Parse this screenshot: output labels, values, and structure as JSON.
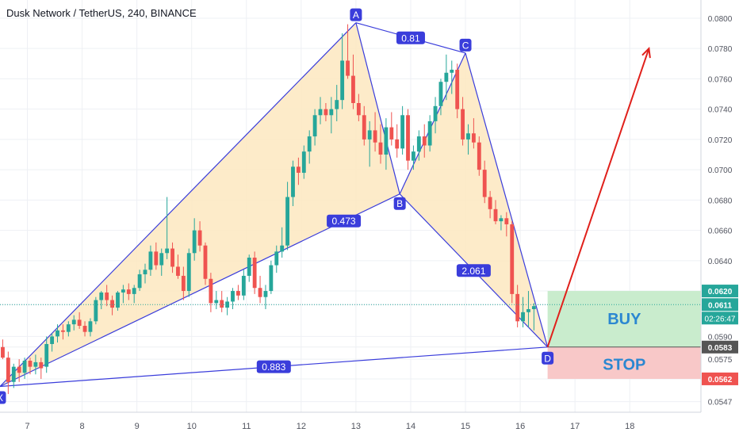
{
  "header": {
    "title": "Dusk Network / TetherUS, 240, BINANCE"
  },
  "colors": {
    "up": "#26a69a",
    "down": "#ef5350",
    "pattern": "#3a3ddb",
    "fill": "#fde8bf",
    "buy_zone": "#c9eccd",
    "stop_zone": "#f8c8c8",
    "arrow": "#e0201b",
    "price_line": "#26a69a",
    "zone_text": "#2b87d1"
  },
  "chart_data": {
    "type": "candlestick",
    "y_range": [
      0.054,
      0.0812
    ],
    "x_range": [
      6.5,
      19.3
    ],
    "x_ticks": [
      "7",
      "8",
      "9",
      "10",
      "11",
      "12",
      "13",
      "14",
      "15",
      "16",
      "17",
      "18"
    ],
    "y_ticks": [
      "0.0800",
      "0.0780",
      "0.0760",
      "0.0740",
      "0.0720",
      "0.0700",
      "0.0680",
      "0.0660",
      "0.0640",
      "0.0620",
      "0.0611",
      "0.0590",
      "0.0583",
      "0.0575",
      "0.0562",
      "0.0547"
    ],
    "candles": [
      [
        6.55,
        0.0583,
        0.0588,
        0.0575,
        0.0576
      ],
      [
        6.65,
        0.0576,
        0.058,
        0.0552,
        0.056
      ],
      [
        6.75,
        0.056,
        0.0572,
        0.0556,
        0.057
      ],
      [
        6.85,
        0.057,
        0.0575,
        0.056,
        0.0566
      ],
      [
        6.95,
        0.0566,
        0.0576,
        0.0562,
        0.0574
      ],
      [
        7.05,
        0.0574,
        0.0576,
        0.0565,
        0.057
      ],
      [
        7.15,
        0.057,
        0.0578,
        0.0565,
        0.0573
      ],
      [
        7.25,
        0.0573,
        0.0576,
        0.0562,
        0.0569
      ],
      [
        7.35,
        0.057,
        0.059,
        0.0566,
        0.0585
      ],
      [
        7.45,
        0.0585,
        0.0592,
        0.058,
        0.059
      ],
      [
        7.55,
        0.059,
        0.0598,
        0.0586,
        0.0594
      ],
      [
        7.65,
        0.0594,
        0.0598,
        0.0588,
        0.0593
      ],
      [
        7.75,
        0.0593,
        0.06,
        0.059,
        0.0598
      ],
      [
        7.85,
        0.0598,
        0.0604,
        0.0594,
        0.0601
      ],
      [
        7.95,
        0.0601,
        0.0606,
        0.0595,
        0.0597
      ],
      [
        8.05,
        0.0597,
        0.06,
        0.059,
        0.0593
      ],
      [
        8.15,
        0.0593,
        0.0602,
        0.059,
        0.06
      ],
      [
        8.25,
        0.06,
        0.0616,
        0.0598,
        0.0614
      ],
      [
        8.35,
        0.0614,
        0.062,
        0.0608,
        0.0619
      ],
      [
        8.45,
        0.0619,
        0.0624,
        0.061,
        0.0614
      ],
      [
        8.55,
        0.0614,
        0.0617,
        0.0604,
        0.0609
      ],
      [
        8.65,
        0.0609,
        0.062,
        0.0607,
        0.0619
      ],
      [
        8.75,
        0.0619,
        0.0624,
        0.0612,
        0.0621
      ],
      [
        8.85,
        0.0621,
        0.0625,
        0.0614,
        0.0618
      ],
      [
        8.95,
        0.0618,
        0.0624,
        0.0612,
        0.0622
      ],
      [
        9.05,
        0.0622,
        0.0634,
        0.062,
        0.0631
      ],
      [
        9.15,
        0.0631,
        0.0638,
        0.0625,
        0.0634
      ],
      [
        9.25,
        0.0634,
        0.065,
        0.063,
        0.0646
      ],
      [
        9.35,
        0.0646,
        0.0652,
        0.0634,
        0.0637
      ],
      [
        9.45,
        0.0637,
        0.0648,
        0.063,
        0.0645
      ],
      [
        9.55,
        0.0645,
        0.0682,
        0.0641,
        0.0648
      ],
      [
        9.65,
        0.0648,
        0.0652,
        0.0632,
        0.0636
      ],
      [
        9.75,
        0.0636,
        0.0644,
        0.0628,
        0.063
      ],
      [
        9.85,
        0.063,
        0.0636,
        0.0614,
        0.062
      ],
      [
        9.95,
        0.062,
        0.0648,
        0.0616,
        0.0645
      ],
      [
        10.05,
        0.0645,
        0.0668,
        0.064,
        0.066
      ],
      [
        10.15,
        0.066,
        0.0666,
        0.0646,
        0.065
      ],
      [
        10.25,
        0.065,
        0.0652,
        0.0624,
        0.0628
      ],
      [
        10.35,
        0.0628,
        0.0632,
        0.0606,
        0.0612
      ],
      [
        10.45,
        0.0612,
        0.062,
        0.0608,
        0.0614
      ],
      [
        10.55,
        0.0614,
        0.062,
        0.0606,
        0.0609
      ],
      [
        10.65,
        0.0609,
        0.0616,
        0.0604,
        0.0613
      ],
      [
        10.75,
        0.0613,
        0.0622,
        0.0608,
        0.062
      ],
      [
        10.85,
        0.062,
        0.0624,
        0.0614,
        0.0617
      ],
      [
        10.95,
        0.0617,
        0.0634,
        0.0614,
        0.063
      ],
      [
        11.05,
        0.063,
        0.0644,
        0.0626,
        0.0642
      ],
      [
        11.15,
        0.0642,
        0.0646,
        0.0618,
        0.0622
      ],
      [
        11.25,
        0.0622,
        0.063,
        0.0612,
        0.0616
      ],
      [
        11.35,
        0.0616,
        0.0624,
        0.0608,
        0.062
      ],
      [
        11.45,
        0.062,
        0.064,
        0.0618,
        0.0637
      ],
      [
        11.55,
        0.0637,
        0.065,
        0.0632,
        0.0646
      ],
      [
        11.65,
        0.0646,
        0.0662,
        0.0642,
        0.065
      ],
      [
        11.75,
        0.065,
        0.0692,
        0.0647,
        0.0682
      ],
      [
        11.85,
        0.0682,
        0.0706,
        0.0676,
        0.0702
      ],
      [
        11.95,
        0.0702,
        0.0708,
        0.069,
        0.0698
      ],
      [
        12.05,
        0.0698,
        0.0716,
        0.0694,
        0.0712
      ],
      [
        12.15,
        0.0712,
        0.0726,
        0.0704,
        0.0722
      ],
      [
        12.25,
        0.0722,
        0.074,
        0.0716,
        0.0736
      ],
      [
        12.35,
        0.0736,
        0.0748,
        0.073,
        0.074
      ],
      [
        12.45,
        0.074,
        0.0744,
        0.0732,
        0.0736
      ],
      [
        12.55,
        0.0736,
        0.0748,
        0.0724,
        0.074
      ],
      [
        12.65,
        0.074,
        0.0756,
        0.0732,
        0.0746
      ],
      [
        12.75,
        0.0746,
        0.079,
        0.074,
        0.0772
      ],
      [
        12.85,
        0.0772,
        0.0796,
        0.076,
        0.0762
      ],
      [
        12.95,
        0.0762,
        0.0776,
        0.074,
        0.0744
      ],
      [
        13.05,
        0.0744,
        0.075,
        0.0732,
        0.0736
      ],
      [
        13.15,
        0.0736,
        0.0742,
        0.0716,
        0.072
      ],
      [
        13.25,
        0.072,
        0.0732,
        0.0702,
        0.0726
      ],
      [
        13.35,
        0.0726,
        0.0738,
        0.0712,
        0.0718
      ],
      [
        13.45,
        0.0718,
        0.073,
        0.0704,
        0.071
      ],
      [
        13.55,
        0.071,
        0.0734,
        0.07,
        0.0728
      ],
      [
        13.65,
        0.0728,
        0.0738,
        0.0716,
        0.072
      ],
      [
        13.75,
        0.072,
        0.073,
        0.0708,
        0.0714
      ],
      [
        13.85,
        0.0714,
        0.0742,
        0.071,
        0.0736
      ],
      [
        13.95,
        0.0736,
        0.074,
        0.07,
        0.0706
      ],
      [
        14.05,
        0.0706,
        0.0716,
        0.07,
        0.0712
      ],
      [
        14.15,
        0.0712,
        0.0726,
        0.0706,
        0.0722
      ],
      [
        14.25,
        0.0722,
        0.073,
        0.0708,
        0.0716
      ],
      [
        14.35,
        0.0716,
        0.0736,
        0.0712,
        0.0732
      ],
      [
        14.45,
        0.0732,
        0.0748,
        0.0724,
        0.0742
      ],
      [
        14.55,
        0.0742,
        0.076,
        0.0736,
        0.0758
      ],
      [
        14.65,
        0.0758,
        0.0776,
        0.0746,
        0.0764
      ],
      [
        14.75,
        0.0764,
        0.0772,
        0.075,
        0.0766
      ],
      [
        14.85,
        0.0766,
        0.077,
        0.0734,
        0.074
      ],
      [
        14.95,
        0.074,
        0.0748,
        0.0716,
        0.072
      ],
      [
        15.05,
        0.072,
        0.073,
        0.071,
        0.0724
      ],
      [
        15.15,
        0.0724,
        0.0734,
        0.0714,
        0.0718
      ],
      [
        15.25,
        0.0718,
        0.0722,
        0.0696,
        0.07
      ],
      [
        15.35,
        0.07,
        0.0706,
        0.0678,
        0.0682
      ],
      [
        15.45,
        0.0682,
        0.0686,
        0.0668,
        0.0674
      ],
      [
        15.55,
        0.0674,
        0.068,
        0.0664,
        0.0666
      ],
      [
        15.65,
        0.0666,
        0.067,
        0.066,
        0.0668
      ],
      [
        15.75,
        0.0668,
        0.0672,
        0.0656,
        0.0664
      ],
      [
        15.85,
        0.0664,
        0.0666,
        0.0612,
        0.0618
      ],
      [
        15.95,
        0.0618,
        0.0624,
        0.0596,
        0.06
      ],
      [
        16.05,
        0.06,
        0.0616,
        0.0596,
        0.0606
      ],
      [
        16.15,
        0.0606,
        0.062,
        0.0596,
        0.0608
      ],
      [
        16.25,
        0.0608,
        0.0612,
        0.0594,
        0.061
      ]
    ],
    "pattern_points": {
      "X": [
        6.5,
        0.0557
      ],
      "A": [
        13.0,
        0.0797
      ],
      "B": [
        13.8,
        0.0684
      ],
      "C": [
        15.0,
        0.0777
      ],
      "D": [
        16.5,
        0.0583
      ]
    },
    "point_labels": [
      "X",
      "A",
      "B",
      "C",
      "D"
    ],
    "ratios": [
      {
        "label": "0.473"
      },
      {
        "label": "0.81"
      },
      {
        "label": "2.061"
      },
      {
        "label": "0.883"
      }
    ],
    "price_marks": {
      "target": "0.0620",
      "current": "0.0611",
      "countdown": "02:26:47",
      "entry": "0.0583",
      "stop": "0.0562"
    },
    "zones": {
      "buy": "BUY",
      "stop": "STOP"
    }
  }
}
